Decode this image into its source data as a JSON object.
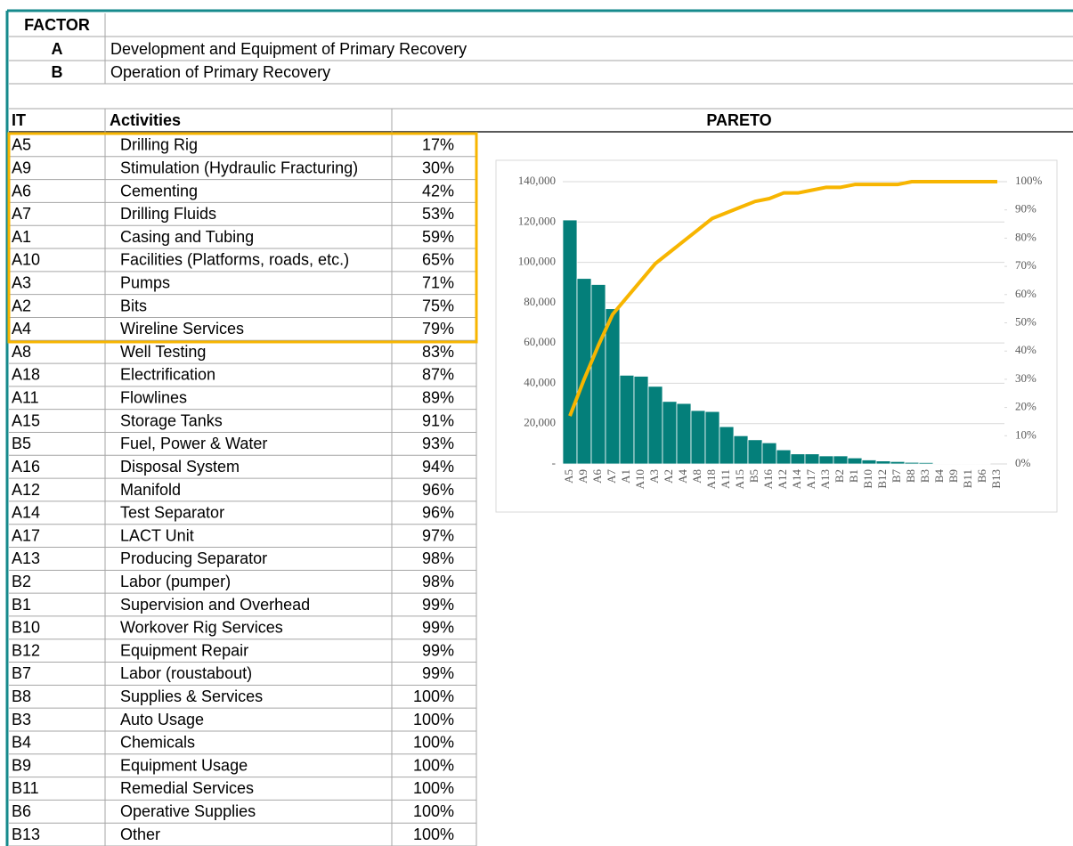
{
  "factors": {
    "header": "FACTOR",
    "items": [
      {
        "code": "A",
        "label": "Development and Equipment of Primary Recovery"
      },
      {
        "code": "B",
        "label": "Operation of Primary Recovery"
      }
    ]
  },
  "table": {
    "columns": [
      "IT",
      "Activities",
      "PARETO"
    ],
    "rows": [
      [
        "A5",
        "Drilling Rig",
        "17%"
      ],
      [
        "A9",
        "Stimulation (Hydraulic Fracturing)",
        "30%"
      ],
      [
        "A6",
        "Cementing",
        "42%"
      ],
      [
        "A7",
        "Drilling Fluids",
        "53%"
      ],
      [
        "A1",
        "Casing and Tubing",
        "59%"
      ],
      [
        "A10",
        "Facilities (Platforms, roads, etc.)",
        "65%"
      ],
      [
        "A3",
        "Pumps",
        "71%"
      ],
      [
        "A2",
        "Bits",
        "75%"
      ],
      [
        "A4",
        "Wireline Services",
        "79%"
      ],
      [
        "A8",
        "Well Testing",
        "83%"
      ],
      [
        "A18",
        "Electrification",
        "87%"
      ],
      [
        "A11",
        "Flowlines",
        "89%"
      ],
      [
        "A15",
        "Storage Tanks",
        "91%"
      ],
      [
        "B5",
        "Fuel, Power & Water",
        "93%"
      ],
      [
        "A16",
        "Disposal System",
        "94%"
      ],
      [
        "A12",
        "Manifold",
        "96%"
      ],
      [
        "A14",
        "Test Separator",
        "96%"
      ],
      [
        "A17",
        "LACT Unit",
        "97%"
      ],
      [
        "A13",
        "Producing Separator",
        "98%"
      ],
      [
        "B2",
        "Labor (pumper)",
        "98%"
      ],
      [
        "B1",
        "Supervision and Overhead",
        "99%"
      ],
      [
        "B10",
        "Workover Rig Services",
        "99%"
      ],
      [
        "B12",
        "Equipment Repair",
        "99%"
      ],
      [
        "B7",
        "Labor (roustabout)",
        "99%"
      ],
      [
        "B8",
        "Supplies & Services",
        "100%"
      ],
      [
        "B3",
        "Auto Usage",
        "100%"
      ],
      [
        "B4",
        "Chemicals",
        "100%"
      ],
      [
        "B9",
        "Equipment Usage",
        "100%"
      ],
      [
        "B11",
        "Remedial Services",
        "100%"
      ],
      [
        "B6",
        "Operative Supplies",
        "100%"
      ],
      [
        "B13",
        "Other",
        "100%"
      ]
    ]
  },
  "chart": {
    "type": "bar",
    "categories": [
      "A5",
      "A9",
      "A6",
      "A7",
      "A1",
      "A10",
      "A3",
      "A2",
      "A4",
      "A8",
      "A18",
      "A11",
      "A15",
      "B5",
      "A16",
      "A12",
      "A14",
      "A17",
      "A13",
      "B2",
      "B1",
      "B10",
      "B12",
      "B7",
      "B8",
      "B3",
      "B4",
      "B9",
      "B11",
      "B6",
      "B13"
    ],
    "bars": {
      "color": "#047f7a",
      "values": [
        121000,
        92000,
        89000,
        77000,
        44000,
        43500,
        38500,
        31000,
        30000,
        26500,
        26000,
        18500,
        14000,
        12000,
        10500,
        7000,
        5000,
        5000,
        4000,
        4000,
        3000,
        2000,
        1500,
        1200,
        800,
        700,
        300,
        200,
        100,
        50,
        0
      ]
    },
    "line": {
      "color": "#f7b500",
      "axis": "y2",
      "values": [
        17,
        30,
        42,
        53,
        59,
        65,
        71,
        75,
        79,
        83,
        87,
        89,
        91,
        93,
        94,
        96,
        96,
        97,
        98,
        98,
        99,
        99,
        99,
        99,
        100,
        100,
        100,
        100,
        100,
        100,
        100
      ]
    },
    "ylim": [
      0,
      140000
    ],
    "yticks": [
      {
        "value": 0,
        "label": "-"
      },
      {
        "value": 20000,
        "label": "20,000"
      },
      {
        "value": 40000,
        "label": "40,000"
      },
      {
        "value": 60000,
        "label": "60,000"
      },
      {
        "value": 80000,
        "label": "80,000"
      },
      {
        "value": 100000,
        "label": "100,000"
      },
      {
        "value": 120000,
        "label": "120,000"
      },
      {
        "value": 140000,
        "label": "140,000"
      }
    ],
    "y2lim": [
      0,
      100
    ],
    "y2ticks": [
      {
        "value": 0,
        "label": "0%"
      },
      {
        "value": 10,
        "label": "10%"
      },
      {
        "value": 20,
        "label": "20%"
      },
      {
        "value": 30,
        "label": "30%"
      },
      {
        "value": 40,
        "label": "40%"
      },
      {
        "value": 50,
        "label": "50%"
      },
      {
        "value": 60,
        "label": "60%"
      },
      {
        "value": 70,
        "label": "70%"
      },
      {
        "value": 80,
        "label": "80%"
      },
      {
        "value": 90,
        "label": "90%"
      },
      {
        "value": 100,
        "label": "100%"
      }
    ],
    "grid": true
  }
}
